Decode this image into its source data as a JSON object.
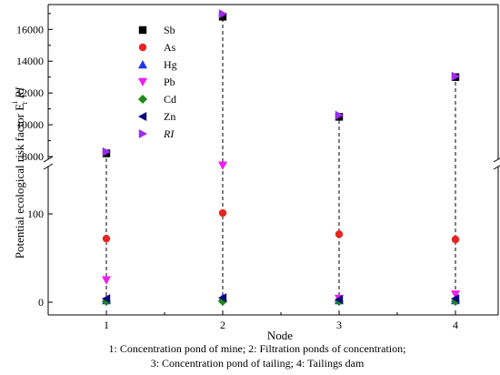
{
  "chart_data": {
    "type": "scatter",
    "xlabel": "Node",
    "ylabel": "Potential ecological risk factor E",
    "ylabel_sup": "i",
    "ylabel_sub": "r",
    "ylabel_tail": "RI",
    "broken_axis": true,
    "x": [
      1,
      2,
      3,
      4
    ],
    "x_tick_labels": [
      "1",
      "2",
      "3",
      "4"
    ],
    "y_ticks_lower": [
      0,
      100
    ],
    "y_ticks_upper": [
      8000,
      10000,
      12000,
      14000,
      16000
    ],
    "y_tick_labels": [
      "0",
      "100",
      "8000",
      "10000",
      "12000",
      "14000",
      "16000"
    ],
    "legend_position": "top-left",
    "series": [
      {
        "name": "Sb",
        "marker": "square",
        "color": "#000000",
        "values": [
          8200,
          16800,
          10500,
          13000
        ]
      },
      {
        "name": "As",
        "marker": "circle",
        "color": "#e8241f",
        "values": [
          72,
          101,
          77,
          71
        ]
      },
      {
        "name": "Hg",
        "marker": "triangle-up",
        "color": "#1f35f0",
        "values": [
          2,
          5,
          2,
          2
        ]
      },
      {
        "name": "Pb",
        "marker": "triangle-down",
        "color": "#f21cf2",
        "values": [
          25,
          155,
          4,
          9
        ]
      },
      {
        "name": "Cd",
        "marker": "diamond",
        "color": "#1a8a1a",
        "values": [
          1,
          1,
          1,
          1
        ]
      },
      {
        "name": "Zn",
        "marker": "triangle-left",
        "color": "#0a0a7a",
        "values": [
          4,
          5,
          3,
          4
        ]
      },
      {
        "name": "RI",
        "marker": "triangle-right",
        "color": "#9a2cf0",
        "italic": true,
        "values": [
          8300,
          16980,
          10600,
          13050
        ]
      }
    ],
    "caption_line1": "1: Concentration pond of mine; 2: Filtration ponds of concentration;",
    "caption_line2": "3: Concentration pond of tailing; 4: Tailings dam"
  }
}
